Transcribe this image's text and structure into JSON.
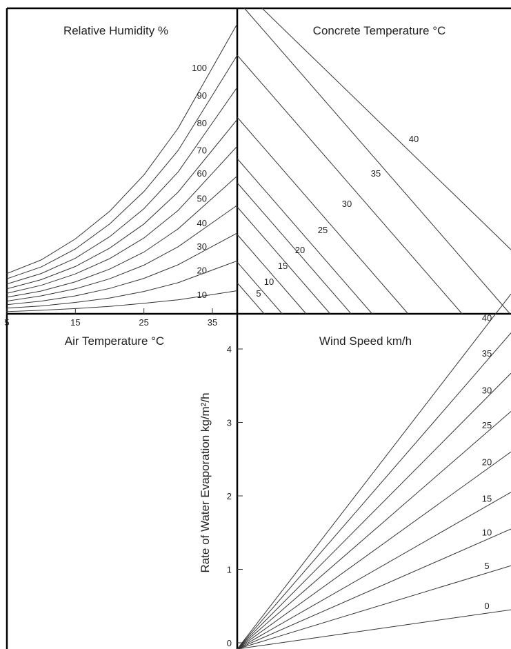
{
  "chart_data": {
    "type": "line",
    "description": "",
    "panels": {
      "relative_humidity": {
        "title": "Relative Humidity %",
        "curves": [
          {
            "label": "100",
            "values": [
              [
                5,
                0.92
              ],
              [
                10,
                1.23
              ],
              [
                15,
                1.71
              ],
              [
                20,
                2.34
              ],
              [
                25,
                3.17
              ],
              [
                30,
                4.24
              ],
              [
                35,
                5.62
              ]
            ]
          },
          {
            "label": "90",
            "values": [
              [
                5,
                0.8
              ],
              [
                10,
                1.07
              ],
              [
                15,
                1.48
              ],
              [
                20,
                2.05
              ],
              [
                25,
                2.79
              ],
              [
                30,
                3.73
              ],
              [
                35,
                4.99
              ]
            ]
          },
          {
            "label": "80",
            "values": [
              [
                5,
                0.68
              ],
              [
                10,
                0.92
              ],
              [
                15,
                1.27
              ],
              [
                20,
                1.76
              ],
              [
                25,
                2.4
              ],
              [
                30,
                3.24
              ],
              [
                35,
                4.36
              ]
            ]
          },
          {
            "label": "70",
            "values": [
              [
                5,
                0.57
              ],
              [
                10,
                0.78
              ],
              [
                15,
                1.08
              ],
              [
                20,
                1.5
              ],
              [
                25,
                2.05
              ],
              [
                30,
                2.78
              ],
              [
                35,
                3.74
              ]
            ]
          },
          {
            "label": "60",
            "values": [
              [
                5,
                0.47
              ],
              [
                10,
                0.65
              ],
              [
                15,
                0.91
              ],
              [
                20,
                1.26
              ],
              [
                25,
                1.73
              ],
              [
                30,
                2.36
              ],
              [
                35,
                3.21
              ]
            ]
          },
          {
            "label": "50",
            "values": [
              [
                5,
                0.38
              ],
              [
                10,
                0.52
              ],
              [
                15,
                0.73
              ],
              [
                20,
                1.02
              ],
              [
                25,
                1.41
              ],
              [
                30,
                1.94
              ],
              [
                35,
                2.64
              ]
            ]
          },
          {
            "label": "40",
            "values": [
              [
                5,
                0.29
              ],
              [
                10,
                0.41
              ],
              [
                15,
                0.57
              ],
              [
                20,
                0.8
              ],
              [
                25,
                1.11
              ],
              [
                30,
                1.53
              ],
              [
                35,
                2.08
              ]
            ]
          },
          {
            "label": "30",
            "values": [
              [
                5,
                0.21
              ],
              [
                10,
                0.29
              ],
              [
                15,
                0.41
              ],
              [
                20,
                0.58
              ],
              [
                25,
                0.81
              ],
              [
                30,
                1.12
              ],
              [
                35,
                1.54
              ]
            ]
          },
          {
            "label": "20",
            "values": [
              [
                5,
                0.13
              ],
              [
                10,
                0.18
              ],
              [
                15,
                0.26
              ],
              [
                20,
                0.36
              ],
              [
                25,
                0.51
              ],
              [
                30,
                0.71
              ],
              [
                35,
                1.0
              ]
            ]
          },
          {
            "label": "10",
            "values": [
              [
                5,
                0.05
              ],
              [
                10,
                0.08
              ],
              [
                15,
                0.12
              ],
              [
                20,
                0.17
              ],
              [
                25,
                0.24
              ],
              [
                30,
                0.32
              ],
              [
                35,
                0.44
              ]
            ]
          }
        ]
      },
      "concrete_temperature": {
        "title": "Concrete Temperature °C",
        "lines": [
          "5",
          "10",
          "15",
          "20",
          "25",
          "30",
          "35",
          "40"
        ]
      },
      "air_temperature": {
        "title": "Air Temperature °C",
        "ticks": [
          "5",
          "15",
          "25",
          "35"
        ],
        "xlim": [
          5,
          35
        ]
      },
      "wind_speed": {
        "title": "Wind Speed km/h",
        "ylabel": "Rate of Water Evaporation kg/m²/h",
        "yticks": [
          "0",
          "1",
          "2",
          "3",
          "4"
        ],
        "ylim": [
          0,
          4
        ],
        "lines": [
          {
            "label": "40",
            "value": 4.75
          },
          {
            "label": "35",
            "value": 4.22
          },
          {
            "label": "30",
            "value": 3.67
          },
          {
            "label": "25",
            "value": 3.15
          },
          {
            "label": "20",
            "value": 2.6
          },
          {
            "label": "15",
            "value": 2.05
          },
          {
            "label": "10",
            "value": 1.55
          },
          {
            "label": "5",
            "value": 1.05
          },
          {
            "label": "0",
            "value": 0.45
          }
        ]
      }
    }
  }
}
